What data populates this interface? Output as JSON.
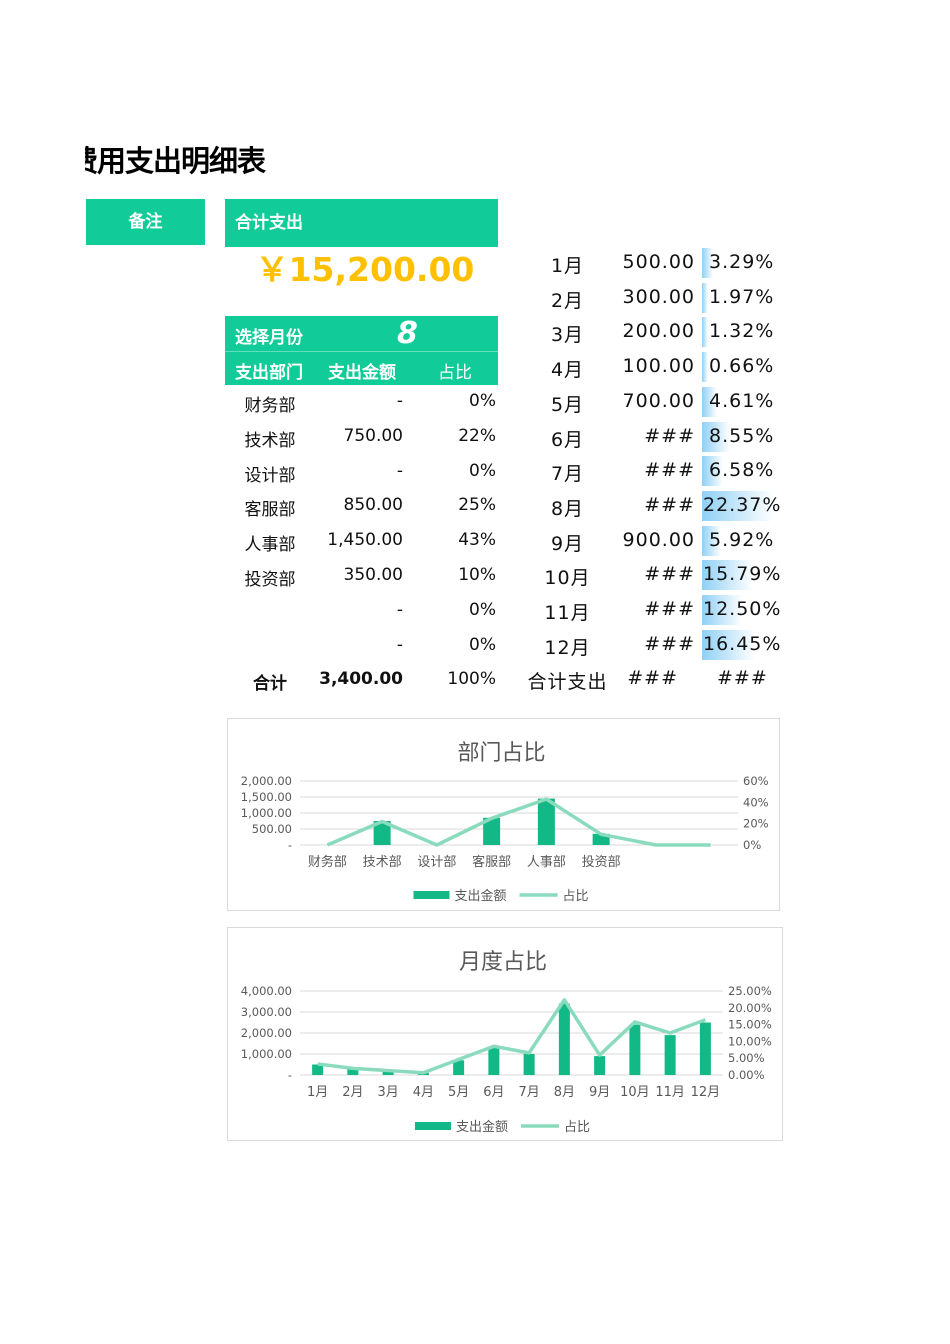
{
  "title": "费用支出明细表",
  "remark_label": "备注",
  "total_label": "合计支出",
  "total_value": "￥15,200.00",
  "select_month_label": "选择月份",
  "selected_month": "8",
  "dept_table": {
    "headers": [
      "支出部门",
      "支出金额",
      "占比"
    ],
    "rows": [
      {
        "dept": "财务部",
        "amount": "-",
        "pct": "0%"
      },
      {
        "dept": "技术部",
        "amount": "750.00",
        "pct": "22%"
      },
      {
        "dept": "设计部",
        "amount": "-",
        "pct": "0%"
      },
      {
        "dept": "客服部",
        "amount": "850.00",
        "pct": "25%"
      },
      {
        "dept": "人事部",
        "amount": "1,450.00",
        "pct": "43%"
      },
      {
        "dept": "投资部",
        "amount": "350.00",
        "pct": "10%"
      },
      {
        "dept": "",
        "amount": "-",
        "pct": "0%"
      },
      {
        "dept": "",
        "amount": "-",
        "pct": "0%"
      }
    ],
    "total": {
      "label": "合计",
      "amount": "3,400.00",
      "pct": "100%"
    }
  },
  "month_table": {
    "rows": [
      {
        "month": "1月",
        "amount": "500.00",
        "pct": "3.29%",
        "share": 3.29
      },
      {
        "month": "2月",
        "amount": "300.00",
        "pct": "1.97%",
        "share": 1.97
      },
      {
        "month": "3月",
        "amount": "200.00",
        "pct": "1.32%",
        "share": 1.32
      },
      {
        "month": "4月",
        "amount": "100.00",
        "pct": "0.66%",
        "share": 0.66
      },
      {
        "month": "5月",
        "amount": "700.00",
        "pct": "4.61%",
        "share": 4.61
      },
      {
        "month": "6月",
        "amount": "###",
        "pct": "8.55%",
        "share": 8.55
      },
      {
        "month": "7月",
        "amount": "###",
        "pct": "6.58%",
        "share": 6.58
      },
      {
        "month": "8月",
        "amount": "###",
        "pct": "22.37%",
        "share": 22.37
      },
      {
        "month": "9月",
        "amount": "900.00",
        "pct": "5.92%",
        "share": 5.92
      },
      {
        "month": "10月",
        "amount": "###",
        "pct": "15.79%",
        "share": 15.79
      },
      {
        "month": "11月",
        "amount": "###",
        "pct": "12.50%",
        "share": 12.5
      },
      {
        "month": "12月",
        "amount": "###",
        "pct": "16.45%",
        "share": 16.45
      }
    ],
    "total": {
      "label": "合计支出",
      "amount": "###",
      "pct": "###"
    }
  },
  "colors": {
    "accent": "#11cc98",
    "bar": "#12b886",
    "line": "#8adbbd",
    "total": "#ffc000",
    "databar": "#8fd0f5"
  },
  "chart_data": [
    {
      "type": "bar+line",
      "title": "部门占比",
      "categories": [
        "财务部",
        "技术部",
        "设计部",
        "客服部",
        "人事部",
        "投资部",
        "",
        ""
      ],
      "series": [
        {
          "name": "支出金额",
          "type": "bar",
          "axis": "left",
          "values": [
            0,
            750,
            0,
            850,
            1450,
            350,
            0,
            0
          ]
        },
        {
          "name": "占比",
          "type": "line",
          "axis": "right",
          "values": [
            0,
            22,
            0,
            25,
            43,
            10,
            0,
            0
          ]
        }
      ],
      "ylim": [
        0,
        2000
      ],
      "yticks": [
        "-",
        "500.00",
        "1,000.00",
        "1,500.00",
        "2,000.00"
      ],
      "y2lim": [
        0,
        60
      ],
      "y2ticks": [
        "0%",
        "20%",
        "40%",
        "60%"
      ],
      "grid": true,
      "legend": "bottom"
    },
    {
      "type": "bar+line",
      "title": "月度占比",
      "categories": [
        "1月",
        "2月",
        "3月",
        "4月",
        "5月",
        "6月",
        "7月",
        "8月",
        "9月",
        "10月",
        "11月",
        "12月"
      ],
      "series": [
        {
          "name": "支出金额",
          "type": "bar",
          "axis": "left",
          "values": [
            500,
            300,
            200,
            100,
            700,
            1300,
            1000,
            3400,
            900,
            2400,
            1900,
            2500
          ]
        },
        {
          "name": "占比",
          "type": "line",
          "axis": "right",
          "values": [
            3.29,
            1.97,
            1.32,
            0.66,
            4.61,
            8.55,
            6.58,
            22.37,
            5.92,
            15.79,
            12.5,
            16.45
          ]
        }
      ],
      "ylim": [
        0,
        4000
      ],
      "yticks": [
        "-",
        "1,000.00",
        "2,000.00",
        "3,000.00",
        "4,000.00"
      ],
      "y2lim": [
        0,
        25
      ],
      "y2ticks": [
        "0.00%",
        "5.00%",
        "10.00%",
        "15.00%",
        "20.00%",
        "25.00%"
      ],
      "grid": true,
      "legend": "bottom"
    }
  ]
}
